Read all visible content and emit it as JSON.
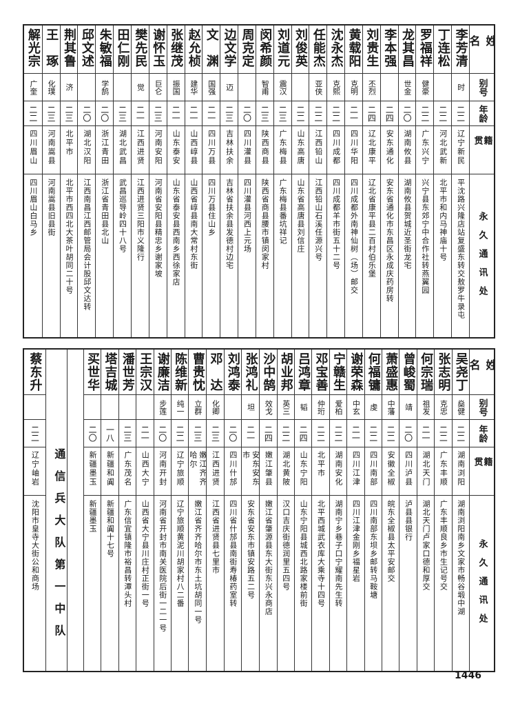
{
  "header": {
    "name": "姓名",
    "alias": "别号",
    "age": "年龄",
    "native": "籍贯",
    "address": "永久通讯处"
  },
  "top_rows": [
    {
      "name": "李芳清",
      "alias": "时",
      "age": "二二",
      "native": "辽宁新民",
      "address": "平沈路兴隆店站复盛东转交敖罗牛录屯"
    },
    {
      "name": "丁连松",
      "alias": "",
      "age": "二二",
      "native": "河北武新",
      "address": "北平市和内马神庙十号"
    },
    {
      "name": "罗福祥",
      "alias": "健豪",
      "age": "二二",
      "native": "广东兴宁",
      "address": "兴宁县东郊宁中合作社转燕翼园"
    },
    {
      "name": "龙其昌",
      "alias": "世金",
      "age": "二〇",
      "native": "湖南攸县",
      "address": "湖南攸县贺城近圣街龙宅"
    },
    {
      "name": "李本强",
      "alias": "",
      "age": "二四",
      "native": "安东通化",
      "address": "安东省通化市东昌区永成庆药房转"
    },
    {
      "name": "刘贵生",
      "alias": "丕烈",
      "age": "二四",
      "native": "辽北康平",
      "address": "辽北省康平县二百村伯乐堡"
    },
    {
      "name": "黄载阳",
      "alias": "克明",
      "age": "二一",
      "native": "四川华阳",
      "address": "四川成都外南神仙树（场）邮交"
    },
    {
      "name": "沈永杰",
      "alias": "克熙",
      "age": "二二",
      "native": "四川成都",
      "address": "四川成都羊市街五十二号"
    },
    {
      "name": "任能杰",
      "alias": "亚侠",
      "age": "二二",
      "native": "江西铅山",
      "address": "江西铅山石溪任源兴号"
    },
    {
      "name": "刘俊英",
      "alias": "",
      "age": "二二",
      "native": "山东高唐",
      "address": "山东省高唐县刘信庄"
    },
    {
      "name": "刘道元",
      "alias": "震汉",
      "age": "二三",
      "native": "广东梅县",
      "address": "广东梅县番坑祥记"
    },
    {
      "name": "闵希颜",
      "alias": "智甫",
      "age": "二三",
      "native": "陕西商县",
      "address": "陕西省商县腰市镇闵家村"
    },
    {
      "name": "周克定",
      "alias": "",
      "age": "二〇",
      "native": "四川灌县",
      "address": "四川灌县河西上元场"
    },
    {
      "name": "边文学",
      "alias": "迈",
      "age": "二三",
      "native": "吉林扶余",
      "address": "吉林省扶余县发德村边宅"
    },
    {
      "name": "文　渊",
      "alias": "国强",
      "age": "二一",
      "native": "四川万县",
      "address": "四川万县住山乡"
    },
    {
      "name": "赵允桢",
      "alias": "建华",
      "age": "二一",
      "native": "山西崞县",
      "address": "山西省崞县南大常村东街"
    },
    {
      "name": "张继茂",
      "alias": "振国",
      "age": "二一",
      "native": "山东泰安",
      "address": "山东省泰安县西南乡西徐家店"
    },
    {
      "name": "谢怀玉",
      "alias": "巨仑",
      "age": "二三",
      "native": "河南安阳",
      "address": "河南省安阳县精忠乡谢家坡"
    },
    {
      "name": "樊先民",
      "alias": "觉",
      "age": "二一",
      "native": "江西进贤",
      "address": "江西进贤三阳市义隆行"
    },
    {
      "name": "田仁刚",
      "alias": "",
      "age": "二三",
      "native": "湖北武昌",
      "address": "武昌巡导岭四十八号"
    },
    {
      "name": "朱敏福",
      "alias": "学鹄",
      "age": "二〇",
      "native": "浙江青田",
      "address": "浙江省青田县北山"
    },
    {
      "name": "邱文述",
      "alias": "",
      "age": "二〇",
      "native": "湖北汉阳",
      "address": "江西南昌江西邮管局会计股邱文达转"
    },
    {
      "name": "荆其鲁",
      "alias": "济",
      "age": "二三",
      "native": "北平市",
      "address": "北平市西四北大茶叶胡同二十号"
    },
    {
      "name": "王　琢",
      "alias": "化璞",
      "age": "二三",
      "native": "河南嵩县",
      "address": "河南嵩县旧县街"
    },
    {
      "name": "解光宗",
      "alias": "广奎",
      "age": "二二",
      "native": "四川眉山",
      "address": "四川眉山白马乡"
    }
  ],
  "bottom_rows": [
    {
      "name": "吴尧丁",
      "alias": "燊健",
      "age": "二二",
      "native": "湖南浏阳",
      "address": "湖南浏阳南乡文家市畅谷塅中湖"
    },
    {
      "name": "张志明",
      "alias": "克忠",
      "age": "二二",
      "native": "广东丰顺",
      "address": "广东丰顺良乡市生记号交"
    },
    {
      "name": "何宗瑞",
      "alias": "祖发",
      "age": "二一",
      "native": "湖北天门",
      "address": "湖北天门卢家口德和厚交"
    },
    {
      "name": "曾峻蜀",
      "alias": "靖",
      "age": "二〇",
      "native": "四川泸县",
      "address": "泸县县银行"
    },
    {
      "name": "萧盛惠",
      "alias": "中藩",
      "age": "二二",
      "native": "安徽全椒",
      "address": "皖东全椒县太平安邮交"
    },
    {
      "name": "何福镛",
      "alias": "虔",
      "age": "二二",
      "native": "四川南部",
      "address": "四川南部东坝乡邮转马鞍塘"
    },
    {
      "name": "谢荣森",
      "alias": "中玄",
      "age": "二一",
      "native": "四川江津",
      "address": "四川江津金刚乡福星岩"
    },
    {
      "name": "宁赣生",
      "alias": "爱柏",
      "age": "二二",
      "native": "湖南安化",
      "address": "湖南宁乡巷子口宁耀南先生转"
    },
    {
      "name": "邓宝善",
      "alias": "仲珩",
      "age": "二二",
      "native": "北平市",
      "address": "北平西城武衣库大乘寺十四号"
    },
    {
      "name": "吕鸿章",
      "alias": "韬",
      "age": "二四",
      "native": "山东宁阳",
      "address": "山东宁阳县城西北路家楼前街"
    },
    {
      "name": "胡业邦",
      "alias": "英三",
      "age": "二二",
      "native": "湖北黄陂",
      "address": "汉口吉庆街德润里五四号"
    },
    {
      "name": "沙中鹄",
      "alias": "效戈",
      "age": "二四",
      "native": "嫩江肇县",
      "address": "嫩江省肇源县东大街东兴永商店"
    },
    {
      "name": "张鸿礼",
      "alias": "坦",
      "age": "二一",
      "native": "安东安东市",
      "address": "安东省安东市镇安路五二号"
    },
    {
      "name": "刘鸿泰",
      "alias": "",
      "age": "二〇",
      "native": "四川什邡",
      "address": "四川省什邡县南街寿椿药室转"
    },
    {
      "name": "邓　达",
      "alias": "化卿",
      "age": "二三",
      "native": "江西进贤",
      "address": "江西省进贤县七里市"
    },
    {
      "name": "曹贵忱",
      "alias": "立群",
      "age": "二三",
      "native": "嫩江齐齐哈尔",
      "address": "嫩江省齐齐哈尔市东土坑胡同一号"
    },
    {
      "name": "陈维新",
      "alias": "纯一",
      "age": "二二",
      "native": "辽宁旅顺",
      "address": "辽宁旅顺黄泥川胡家村八二番"
    },
    {
      "name": "谢廉洁",
      "alias": "步莲",
      "age": "二〇",
      "native": "河南开封",
      "address": "河南省开封市南关医院后街一二一号"
    },
    {
      "name": "王宗汉",
      "alias": "",
      "age": "二一",
      "native": "山西大宁",
      "address": "山西省大宁县川庄村正街一号"
    },
    {
      "name": "潘世芳",
      "alias": "",
      "age": "二三",
      "native": "广东茂名",
      "address": "广东信宜镇隆市裕昌转潭头村"
    },
    {
      "name": "塔吉城",
      "alias": "",
      "age": "一八",
      "native": "新疆和阗",
      "address": "新疆和阗十七号"
    },
    {
      "name": "买世华",
      "alias": "",
      "age": "二〇",
      "native": "新疆墨玉",
      "address": "新疆墨玉"
    }
  ],
  "group_label": "通信兵大队第一中队",
  "group_rows": [
    {
      "name": "蔡东升",
      "alias": "",
      "age": "二二",
      "native": "辽宁岫岩",
      "address": "沈阳市皇寺大街公和商场"
    }
  ],
  "page_number": "1446"
}
